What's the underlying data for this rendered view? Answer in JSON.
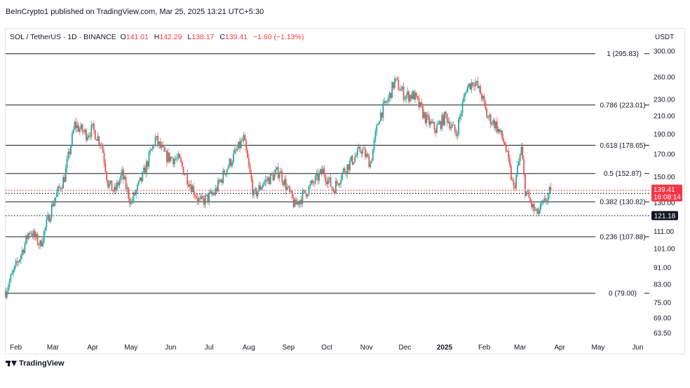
{
  "header": {
    "publisher": "BeInCrypto1 published on TradingView.com, Mar 25, 2025 13:21 UTC+5:30"
  },
  "legend": {
    "symbol": "SOL / TetherUS · 1D · BINANCE",
    "open_label": "O",
    "open": "141.01",
    "high_label": "H",
    "high": "142.29",
    "low_label": "L",
    "low": "138.17",
    "close_label": "C",
    "close": "139.41",
    "change": "−1.60 (−1.13%)"
  },
  "currency": "USDT",
  "footer": {
    "brand": "TradingView"
  },
  "colors": {
    "up": "#26a69a",
    "down": "#ef5350",
    "price_tag": "#f23645",
    "level_tag": "#131722"
  },
  "chart_data": {
    "type": "candlestick",
    "title": "SOL / TetherUS · 1D · BINANCE",
    "y_scale": "log",
    "ylim": [
      60,
      318
    ],
    "y_ticks": [
      "300.00",
      "260.00",
      "230.00",
      "210.00",
      "190.00",
      "170.00",
      "150.00",
      "130.00",
      "111.00",
      "101.00",
      "91.00",
      "83.00",
      "75.00",
      "69.00",
      "63.50"
    ],
    "x_ticks": [
      "Feb",
      "Mar",
      "Apr",
      "May",
      "Jun",
      "Jul",
      "Aug",
      "Sep",
      "Oct",
      "Nov",
      "Dec",
      "2025",
      "Feb",
      "Mar",
      "Apr",
      "May",
      "Jun"
    ],
    "x_tick_dates": [
      "2024-02-01",
      "2024-03-01",
      "2024-04-01",
      "2024-05-01",
      "2024-06-01",
      "2024-07-01",
      "2024-08-01",
      "2024-09-01",
      "2024-10-01",
      "2024-11-01",
      "2024-12-01",
      "2025-01-01",
      "2025-02-01",
      "2025-03-01",
      "2025-04-01",
      "2025-05-01",
      "2025-06-01"
    ],
    "x_range": [
      "2024-01-24",
      "2025-06-10"
    ],
    "fib_levels": [
      {
        "label": "1 (295.83)",
        "value": 295.83
      },
      {
        "label": "0.786 (223.01)",
        "value": 223.01
      },
      {
        "label": "0.618 (178.65)",
        "value": 178.65
      },
      {
        "label": "0.5 (152.87)",
        "value": 152.87
      },
      {
        "label": "0.382 (130.82)",
        "value": 130.82
      },
      {
        "label": "0.236 (107.88)",
        "value": 107.88
      },
      {
        "label": "0 (79.00)",
        "value": 79.0
      }
    ],
    "horizontal_lines": [
      {
        "value": 136.92,
        "label": "136.92",
        "style": "dotted",
        "color": "#131722"
      },
      {
        "value": 121.18,
        "label": "121.18",
        "style": "dotted",
        "color": "#131722"
      },
      {
        "value": 139.41,
        "label": "139.41",
        "style": "dotted",
        "color": "#f23645"
      }
    ],
    "last_price": {
      "value": 139.41,
      "label": "139.41",
      "countdown": "16:08:14"
    },
    "price_anchors": [
      {
        "date": "2024-01-24",
        "price": 80
      },
      {
        "date": "2024-02-05",
        "price": 98
      },
      {
        "date": "2024-02-12",
        "price": 112
      },
      {
        "date": "2024-02-20",
        "price": 103
      },
      {
        "date": "2024-03-01",
        "price": 130
      },
      {
        "date": "2024-03-10",
        "price": 150
      },
      {
        "date": "2024-03-18",
        "price": 200
      },
      {
        "date": "2024-03-27",
        "price": 190
      },
      {
        "date": "2024-04-01",
        "price": 195
      },
      {
        "date": "2024-04-08",
        "price": 180
      },
      {
        "date": "2024-04-13",
        "price": 145
      },
      {
        "date": "2024-04-18",
        "price": 138
      },
      {
        "date": "2024-04-24",
        "price": 152
      },
      {
        "date": "2024-05-01",
        "price": 130
      },
      {
        "date": "2024-05-10",
        "price": 150
      },
      {
        "date": "2024-05-20",
        "price": 185
      },
      {
        "date": "2024-05-28",
        "price": 168
      },
      {
        "date": "2024-06-07",
        "price": 165
      },
      {
        "date": "2024-06-16",
        "price": 145
      },
      {
        "date": "2024-06-24",
        "price": 130
      },
      {
        "date": "2024-07-05",
        "price": 137
      },
      {
        "date": "2024-07-15",
        "price": 158
      },
      {
        "date": "2024-07-28",
        "price": 185
      },
      {
        "date": "2024-08-05",
        "price": 135
      },
      {
        "date": "2024-08-12",
        "price": 145
      },
      {
        "date": "2024-08-25",
        "price": 155
      },
      {
        "date": "2024-09-06",
        "price": 128
      },
      {
        "date": "2024-09-12",
        "price": 135
      },
      {
        "date": "2024-09-28",
        "price": 155
      },
      {
        "date": "2024-10-06",
        "price": 140
      },
      {
        "date": "2024-10-14",
        "price": 155
      },
      {
        "date": "2024-10-28",
        "price": 175
      },
      {
        "date": "2024-11-04",
        "price": 162
      },
      {
        "date": "2024-11-11",
        "price": 210
      },
      {
        "date": "2024-11-18",
        "price": 230
      },
      {
        "date": "2024-11-23",
        "price": 255
      },
      {
        "date": "2024-12-01",
        "price": 235
      },
      {
        "date": "2024-12-08",
        "price": 235
      },
      {
        "date": "2024-12-18",
        "price": 205
      },
      {
        "date": "2024-12-25",
        "price": 195
      },
      {
        "date": "2025-01-02",
        "price": 210
      },
      {
        "date": "2025-01-10",
        "price": 190
      },
      {
        "date": "2025-01-18",
        "price": 245
      },
      {
        "date": "2025-01-24",
        "price": 255
      },
      {
        "date": "2025-01-30",
        "price": 235
      },
      {
        "date": "2025-02-03",
        "price": 210
      },
      {
        "date": "2025-02-10",
        "price": 200
      },
      {
        "date": "2025-02-17",
        "price": 180
      },
      {
        "date": "2025-02-24",
        "price": 140
      },
      {
        "date": "2025-03-02",
        "price": 175
      },
      {
        "date": "2025-03-05",
        "price": 140
      },
      {
        "date": "2025-03-10",
        "price": 128
      },
      {
        "date": "2025-03-14",
        "price": 122
      },
      {
        "date": "2025-03-20",
        "price": 130
      },
      {
        "date": "2025-03-25",
        "price": 139.41
      }
    ]
  }
}
